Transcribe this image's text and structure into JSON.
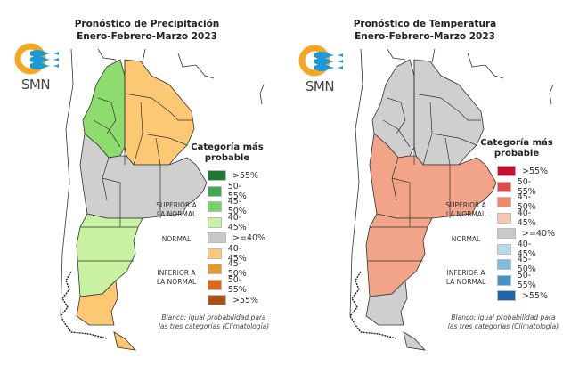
{
  "panels": [
    {
      "id": "precipitation",
      "title_line1": "Pronóstico de Precipitación",
      "title_line2": "Enero-Febrero-Marzo 2023",
      "logo": {
        "text": "SMN",
        "sun_color": "#f5a623",
        "wave_color": "#1a9bd7"
      },
      "legend": {
        "title_line1": "Categoría más",
        "title_line2": "probable",
        "groups": [
          {
            "label_line1": "SUPERIOR A",
            "label_line2": "LA NORMAL"
          },
          {
            "label_line1": "NORMAL",
            "label_line2": ""
          },
          {
            "label_line1": "INFERIOR A",
            "label_line2": "LA NORMAL"
          }
        ],
        "items": [
          {
            "label": ">55%",
            "color": "#1a7a34"
          },
          {
            "label": "50-55%",
            "color": "#3fa94f"
          },
          {
            "label": "45-50%",
            "color": "#74d464"
          },
          {
            "label": "40-45%",
            "color": "#c8f2a0"
          },
          {
            "label": ">=40%",
            "color": "#c8c8c8"
          },
          {
            "label": "40-45%",
            "color": "#fcc874"
          },
          {
            "label": "45-50%",
            "color": "#e59a2e"
          },
          {
            "label": "50-55%",
            "color": "#d96a1a"
          },
          {
            "label": ">55%",
            "color": "#a8521a"
          }
        ],
        "note_line1": "Blanco: igual probabilidad para",
        "note_line2": "las tres categorías (Climatología)"
      },
      "regions": {
        "northwest": "#8fdc6e",
        "northeast": "#fcc874",
        "center": "#cfcfcf",
        "patagonia_north": "#c8f2a0",
        "patagonia_south": "#fcc874",
        "tierra_del_fuego": "#fcc874"
      }
    },
    {
      "id": "temperature",
      "title_line1": "Pronóstico de Temperatura",
      "title_line2": "Enero-Febrero-Marzo 2023",
      "logo": {
        "text": "SMN",
        "sun_color": "#f5a623",
        "wave_color": "#1a9bd7"
      },
      "legend": {
        "title_line1": "Categoría más",
        "title_line2": "probable",
        "groups": [
          {
            "label_line1": "SUPERIOR A",
            "label_line2": "LA NORMAL"
          },
          {
            "label_line1": "NORMAL",
            "label_line2": ""
          },
          {
            "label_line1": "INFERIOR A",
            "label_line2": "LA NORMAL"
          }
        ],
        "items": [
          {
            "label": ">55%",
            "color": "#c8102e"
          },
          {
            "label": "50-55%",
            "color": "#e04a4a"
          },
          {
            "label": "45-50%",
            "color": "#f08b6a"
          },
          {
            "label": "40-45%",
            "color": "#f8c8b0"
          },
          {
            "label": ">=40%",
            "color": "#c8c8c8"
          },
          {
            "label": "40-45%",
            "color": "#b4d8ec"
          },
          {
            "label": "45-50%",
            "color": "#7fbde0"
          },
          {
            "label": "50-55%",
            "color": "#4592c8"
          },
          {
            "label": ">55%",
            "color": "#1a66a8"
          }
        ],
        "note_line1": "Blanco: igual probabilidad para",
        "note_line2": "las tres categorías (Climatología)"
      },
      "regions": {
        "northwest": "#cfcfcf",
        "northeast": "#cfcfcf",
        "center": "#f2a488",
        "patagonia_north": "#f2a488",
        "patagonia_south": "#cfcfcf",
        "tierra_del_fuego": "#cfcfcf"
      }
    }
  ]
}
